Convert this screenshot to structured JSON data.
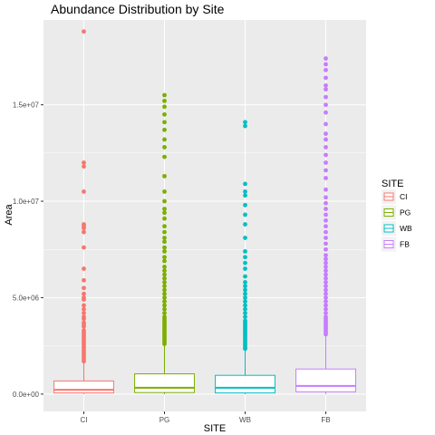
{
  "chart_data": {
    "type": "box",
    "title": "Abundance Distribution by Site",
    "xlabel": "SITE",
    "ylabel": "Area",
    "ylim": [
      -900000,
      19400000
    ],
    "yticks": [
      0,
      5000000,
      10000000,
      15000000
    ],
    "ytick_labels": [
      "0.0e+00",
      "5.0e+06",
      "1.0e+07",
      "1.5e+07"
    ],
    "grid": true,
    "legend": {
      "title": "SITE",
      "placement": "right",
      "entries": [
        "CI",
        "PG",
        "WB",
        "FB"
      ]
    },
    "colors": {
      "CI": "#F8766D",
      "PG": "#7CAE00",
      "WB": "#00BFC4",
      "FB": "#C77CFF"
    },
    "categories": [
      "CI",
      "PG",
      "WB",
      "FB"
    ],
    "series": [
      {
        "name": "CI",
        "q1": 60000,
        "median": 220000,
        "q3": 680000,
        "whisker_low": 0,
        "whisker_high": 1600000,
        "outliers": [
          18800000,
          12000000,
          11800000,
          10500000,
          8800000,
          8700000,
          8600000,
          8400000,
          7600000,
          6500000,
          5900000,
          5500000,
          5200000,
          5000000,
          4900000,
          4600000,
          4400000,
          4200000,
          4000000,
          3900000,
          3700000,
          3600000,
          3500000,
          3300000,
          3200000,
          3100000,
          3000000,
          2900000,
          2800000,
          2700000,
          2600000,
          2500000,
          2400000,
          2300000,
          2200000,
          2100000,
          2000000,
          1900000,
          1800000,
          1700000
        ]
      },
      {
        "name": "PG",
        "q1": 80000,
        "median": 330000,
        "q3": 1050000,
        "whisker_low": 0,
        "whisker_high": 2550000,
        "outliers": [
          15500000,
          15200000,
          14900000,
          14500000,
          14100000,
          13700000,
          13200000,
          12800000,
          12300000,
          11300000,
          10500000,
          10000000,
          9600000,
          9400000,
          9100000,
          8700000,
          8400000,
          8100000,
          7900000,
          7600000,
          7400000,
          7100000,
          6900000,
          6600000,
          6400000,
          6200000,
          6000000,
          5800000,
          5600000,
          5400000,
          5200000,
          5000000,
          4800000,
          4600000,
          4400000,
          4200000,
          4000000,
          3900000,
          3800000,
          3700000,
          3600000,
          3500000,
          3400000,
          3300000,
          3200000,
          3100000,
          3000000,
          2900000,
          2800000,
          2700000,
          2600000
        ]
      },
      {
        "name": "WB",
        "q1": 60000,
        "median": 330000,
        "q3": 970000,
        "whisker_low": 0,
        "whisker_high": 2300000,
        "outliers": [
          14100000,
          13900000,
          10900000,
          10500000,
          10300000,
          9800000,
          9300000,
          8800000,
          8100000,
          7400000,
          7100000,
          6800000,
          6500000,
          6100000,
          5800000,
          5600000,
          5400000,
          5200000,
          5000000,
          4800000,
          4600000,
          4400000,
          4200000,
          4000000,
          3800000,
          3700000,
          3600000,
          3500000,
          3400000,
          3300000,
          3200000,
          3100000,
          3000000,
          2900000,
          2800000,
          2700000,
          2600000,
          2500000,
          2400000,
          2350000
        ]
      },
      {
        "name": "FB",
        "q1": 120000,
        "median": 420000,
        "q3": 1300000,
        "whisker_low": 0,
        "whisker_high": 3000000,
        "outliers": [
          17400000,
          17100000,
          16800000,
          16400000,
          16000000,
          15800000,
          15400000,
          15000000,
          14600000,
          14000000,
          13500000,
          13200000,
          12800000,
          12400000,
          12000000,
          11600000,
          11200000,
          10600000,
          10200000,
          9900000,
          9600000,
          9300000,
          9000000,
          8700000,
          8400000,
          8100000,
          7800000,
          7500000,
          7200000,
          7000000,
          6800000,
          6600000,
          6400000,
          6200000,
          6000000,
          5800000,
          5600000,
          5400000,
          5200000,
          5000000,
          4800000,
          4600000,
          4400000,
          4200000,
          4000000,
          3900000,
          3800000,
          3700000,
          3600000,
          3500000,
          3400000,
          3300000,
          3200000,
          3100000
        ]
      }
    ]
  }
}
